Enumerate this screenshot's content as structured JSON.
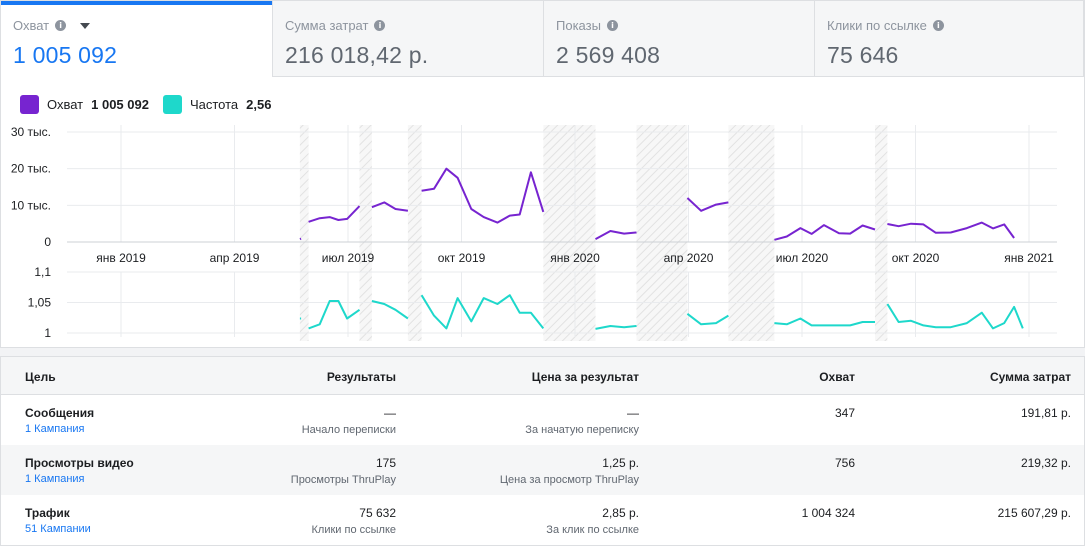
{
  "tabs": [
    {
      "label": "Охват",
      "value": "1 005 092",
      "active": true
    },
    {
      "label": "Сумма затрат",
      "value": "216 018,42 р.",
      "active": false
    },
    {
      "label": "Показы",
      "value": "2 569 408",
      "active": false
    },
    {
      "label": "Клики по ссылке",
      "value": "75 646",
      "active": false
    }
  ],
  "legend": [
    {
      "name": "Охват",
      "value": "1 005 092",
      "color": "#7724d0"
    },
    {
      "name": "Частота",
      "value": "2,56",
      "color": "#1ed8cb"
    }
  ],
  "chart_data": [
    {
      "type": "line",
      "series": [
        {
          "name": "Охват",
          "color": "#7724d0"
        }
      ],
      "y_ticks": [
        "30 тыс.",
        "20 тыс.",
        "10 тыс.",
        "0"
      ],
      "ylim": [
        0,
        30000
      ],
      "x_ticks": [
        "янв 2019",
        "апр 2019",
        "июл 2019",
        "окт 2019",
        "янв 2020",
        "апр 2020",
        "июл 2020",
        "окт 2020",
        "янв 2021"
      ],
      "segments": [
        [
          [
            "2019-05-25",
            800
          ],
          [
            "2019-05-26",
            900
          ]
        ],
        [
          [
            "2019-06-01",
            5500
          ],
          [
            "2019-06-10",
            6500
          ],
          [
            "2019-06-18",
            6800
          ],
          [
            "2019-06-25",
            6000
          ],
          [
            "2019-07-02",
            6300
          ],
          [
            "2019-07-12",
            9800
          ]
        ],
        [
          [
            "2019-07-22",
            9500
          ],
          [
            "2019-08-01",
            10800
          ],
          [
            "2019-08-10",
            9000
          ],
          [
            "2019-08-20",
            8500
          ]
        ],
        [
          [
            "2019-08-31",
            14000
          ],
          [
            "2019-09-10",
            14500
          ],
          [
            "2019-09-20",
            20000
          ],
          [
            "2019-09-29",
            17500
          ],
          [
            "2019-10-10",
            9000
          ],
          [
            "2019-10-20",
            6800
          ],
          [
            "2019-10-31",
            5300
          ],
          [
            "2019-11-10",
            7200
          ],
          [
            "2019-11-18",
            7500
          ],
          [
            "2019-11-27",
            19000
          ],
          [
            "2019-12-07",
            8200
          ]
        ],
        [
          [
            "2020-01-18",
            800
          ],
          [
            "2020-01-30",
            3000
          ],
          [
            "2020-02-10",
            2300
          ],
          [
            "2020-02-20",
            2600
          ]
        ],
        [
          [
            "2020-04-01",
            12000
          ],
          [
            "2020-04-12",
            8500
          ],
          [
            "2020-04-24",
            10200
          ],
          [
            "2020-05-04",
            10800
          ]
        ],
        [
          [
            "2020-06-10",
            600
          ],
          [
            "2020-06-20",
            1500
          ],
          [
            "2020-07-01",
            3800
          ],
          [
            "2020-07-10",
            2200
          ],
          [
            "2020-07-20",
            4600
          ],
          [
            "2020-08-01",
            2400
          ],
          [
            "2020-08-10",
            2300
          ],
          [
            "2020-08-20",
            4500
          ],
          [
            "2020-08-30",
            3400
          ]
        ],
        [
          [
            "2020-09-09",
            4900
          ],
          [
            "2020-09-18",
            4300
          ],
          [
            "2020-09-28",
            5000
          ],
          [
            "2020-10-08",
            4800
          ],
          [
            "2020-10-18",
            2500
          ],
          [
            "2020-10-30",
            2600
          ],
          [
            "2020-11-12",
            3800
          ],
          [
            "2020-11-24",
            5300
          ],
          [
            "2020-12-03",
            3700
          ],
          [
            "2020-12-12",
            4800
          ],
          [
            "2020-12-20",
            1100
          ]
        ]
      ]
    },
    {
      "type": "line",
      "series": [
        {
          "name": "Частота",
          "color": "#1ed8cb"
        }
      ],
      "y_ticks": [
        "1,1",
        "1,05",
        "1"
      ],
      "ylim": [
        0.995,
        1.1
      ],
      "segments": [
        [
          [
            "2019-05-25",
            1.02
          ],
          [
            "2019-05-26",
            1.02
          ]
        ],
        [
          [
            "2019-06-01",
            1.003
          ],
          [
            "2019-06-10",
            1.01
          ],
          [
            "2019-06-18",
            1.05
          ],
          [
            "2019-06-25",
            1.05
          ],
          [
            "2019-07-02",
            1.02
          ],
          [
            "2019-07-12",
            1.035
          ]
        ],
        [
          [
            "2019-07-22",
            1.05
          ],
          [
            "2019-08-01",
            1.045
          ],
          [
            "2019-08-10",
            1.035
          ],
          [
            "2019-08-20",
            1.02
          ]
        ],
        [
          [
            "2019-08-31",
            1.06
          ],
          [
            "2019-09-10",
            1.025
          ],
          [
            "2019-09-20",
            1.003
          ],
          [
            "2019-09-29",
            1.055
          ],
          [
            "2019-10-10",
            1.015
          ],
          [
            "2019-10-20",
            1.055
          ],
          [
            "2019-10-31",
            1.045
          ],
          [
            "2019-11-10",
            1.06
          ],
          [
            "2019-11-18",
            1.03
          ],
          [
            "2019-11-27",
            1.03
          ],
          [
            "2019-12-07",
            1.003
          ]
        ],
        [
          [
            "2020-01-18",
            1.002
          ],
          [
            "2020-01-30",
            1.007
          ],
          [
            "2020-02-10",
            1.005
          ],
          [
            "2020-02-20",
            1.007
          ]
        ],
        [
          [
            "2020-04-01",
            1.028
          ],
          [
            "2020-04-12",
            1.01
          ],
          [
            "2020-04-24",
            1.012
          ],
          [
            "2020-05-04",
            1.025
          ]
        ],
        [
          [
            "2020-06-10",
            1.012
          ],
          [
            "2020-06-20",
            1.01
          ],
          [
            "2020-07-01",
            1.02
          ],
          [
            "2020-07-10",
            1.008
          ],
          [
            "2020-07-20",
            1.008
          ],
          [
            "2020-08-01",
            1.008
          ],
          [
            "2020-08-10",
            1.008
          ],
          [
            "2020-08-20",
            1.014
          ],
          [
            "2020-08-30",
            1.014
          ]
        ],
        [
          [
            "2020-09-09",
            1.045
          ],
          [
            "2020-09-18",
            1.014
          ],
          [
            "2020-09-28",
            1.016
          ],
          [
            "2020-10-08",
            1.008
          ],
          [
            "2020-10-18",
            1.005
          ],
          [
            "2020-10-30",
            1.005
          ],
          [
            "2020-11-12",
            1.012
          ],
          [
            "2020-11-24",
            1.03
          ],
          [
            "2020-12-03",
            1.003
          ],
          [
            "2020-12-12",
            1.012
          ],
          [
            "2020-12-20",
            1.04
          ],
          [
            "2020-12-27",
            1.003
          ]
        ]
      ]
    }
  ],
  "inactive_periods": [
    [
      "2019-05-25",
      "2019-06-01"
    ],
    [
      "2019-07-12",
      "2019-07-22"
    ],
    [
      "2019-08-20",
      "2019-08-31"
    ],
    [
      "2019-12-07",
      "2020-01-18"
    ],
    [
      "2020-02-20",
      "2020-04-01"
    ],
    [
      "2020-05-04",
      "2020-06-10"
    ],
    [
      "2020-08-30",
      "2020-09-09"
    ]
  ],
  "table": {
    "headers": [
      "Цель",
      "Результаты",
      "Цена за результат",
      "Охват",
      "Сумма затрат"
    ],
    "rows": [
      {
        "goal": "Сообщения",
        "campaigns": "1 Кампания",
        "results": "—",
        "results_sub": "Начало переписки",
        "cost": "—",
        "cost_sub": "За начатую переписку",
        "reach": "347",
        "spend": "191,81 р."
      },
      {
        "goal": "Просмотры видео",
        "campaigns": "1 Кампания",
        "results": "175",
        "results_sub": "Просмотры ThruPlay",
        "cost": "1,25 р.",
        "cost_sub": "Цена за просмотр ThruPlay",
        "reach": "756",
        "spend": "219,32 р."
      },
      {
        "goal": "Трафик",
        "campaigns": "51 Кампании",
        "results": "75 632",
        "results_sub": "Клики по ссылке",
        "cost": "2,85 р.",
        "cost_sub": "За клик по ссылке",
        "reach": "1 004 324",
        "spend": "215 607,29 р."
      }
    ]
  }
}
